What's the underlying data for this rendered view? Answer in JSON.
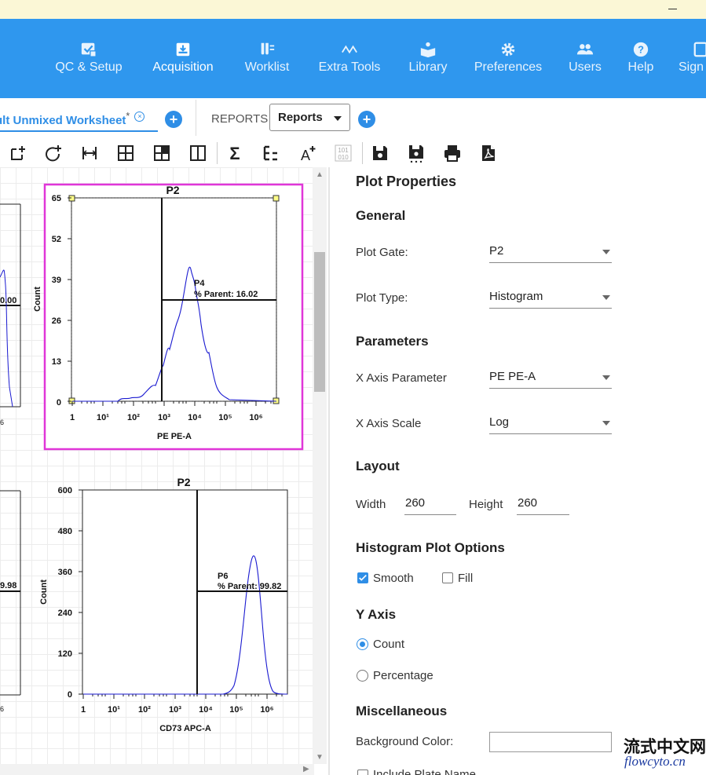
{
  "nav": {
    "items": [
      {
        "label": "QC & Setup",
        "icon": "qc-check-icon"
      },
      {
        "label": "Acquisition",
        "icon": "acquisition-tray-icon"
      },
      {
        "label": "Worklist",
        "icon": "worklist-tubes-icon"
      },
      {
        "label": "Extra Tools",
        "icon": "extra-tools-wave-icon"
      },
      {
        "label": "Library",
        "icon": "library-book-icon"
      },
      {
        "label": "Preferences",
        "icon": "gear-icon"
      },
      {
        "label": "Users",
        "icon": "users-icon"
      },
      {
        "label": "Help",
        "icon": "help-question-icon"
      },
      {
        "label": "Sign",
        "icon": "sign-out-icon"
      }
    ],
    "active": "Acquisition"
  },
  "tabs": {
    "worksheet_label": "ult Unmixed Worksheet",
    "worksheet_modified": "*",
    "reports_label": "REPORTS",
    "reports_value": "Reports"
  },
  "toolbar": {
    "icons": [
      "add-gate-icon",
      "add-plot-icon",
      "interval-gate-icon",
      "quadrant-gate-icon",
      "grid-icon",
      "split-view-icon",
      "statistics-sigma-icon",
      "hierarchy-icon",
      "text-annotation-icon",
      "binary-icon",
      "save-icon",
      "save-as-icon",
      "print-icon",
      "pdf-icon"
    ]
  },
  "plots": {
    "left_stub_top": {
      "value_text": "0.00",
      "tick": "6"
    },
    "left_stub_bottom": {
      "value_text": "9.98",
      "tick": "6"
    },
    "plot1": {
      "title": "P2",
      "ylabel": "Count",
      "xlabel": "PE PE-A",
      "yticks": [
        "65",
        "52",
        "39",
        "26",
        "13",
        "0"
      ],
      "xticks": [
        "1",
        "10¹",
        "10²",
        "10³",
        "10⁴",
        "10⁵",
        "10⁶"
      ],
      "gate_name": "P4",
      "gate_stat": "% Parent: 16.02"
    },
    "plot2": {
      "title": "P2",
      "ylabel": "Count",
      "xlabel": "CD73 APC-A",
      "yticks": [
        "600",
        "480",
        "360",
        "240",
        "120",
        "0"
      ],
      "xticks": [
        "1",
        "10¹",
        "10²",
        "10³",
        "10⁴",
        "10⁵",
        "10⁶"
      ],
      "gate_name": "P6",
      "gate_stat": "% Parent: 99.82"
    }
  },
  "properties": {
    "title": "Plot Properties",
    "general_heading": "General",
    "plot_gate_label": "Plot Gate:",
    "plot_gate_value": "P2",
    "plot_type_label": "Plot Type:",
    "plot_type_value": "Histogram",
    "parameters_heading": "Parameters",
    "x_axis_param_label": "X Axis Parameter",
    "x_axis_param_value": "PE PE-A",
    "x_axis_scale_label": "X Axis Scale",
    "x_axis_scale_value": "Log",
    "layout_heading": "Layout",
    "width_label": "Width",
    "width_value": "260",
    "height_label": "Height",
    "height_value": "260",
    "histogram_heading": "Histogram Plot Options",
    "smooth_label": "Smooth",
    "smooth_checked": true,
    "fill_label": "Fill",
    "fill_checked": false,
    "y_axis_heading": "Y Axis",
    "count_label": "Count",
    "percentage_label": "Percentage",
    "y_axis_selected": "Count",
    "misc_heading": "Miscellaneous",
    "bg_color_label": "Background Color:",
    "include_plate_label": "Include Plate Name"
  },
  "watermark": {
    "line1": "流式中文网",
    "line2": "flowcyto.cn"
  },
  "colors": {
    "nav_bg": "#2f97ee",
    "accent": "#2f8ee6",
    "selection": "#e036d8",
    "curve": "#1a1ad0"
  }
}
